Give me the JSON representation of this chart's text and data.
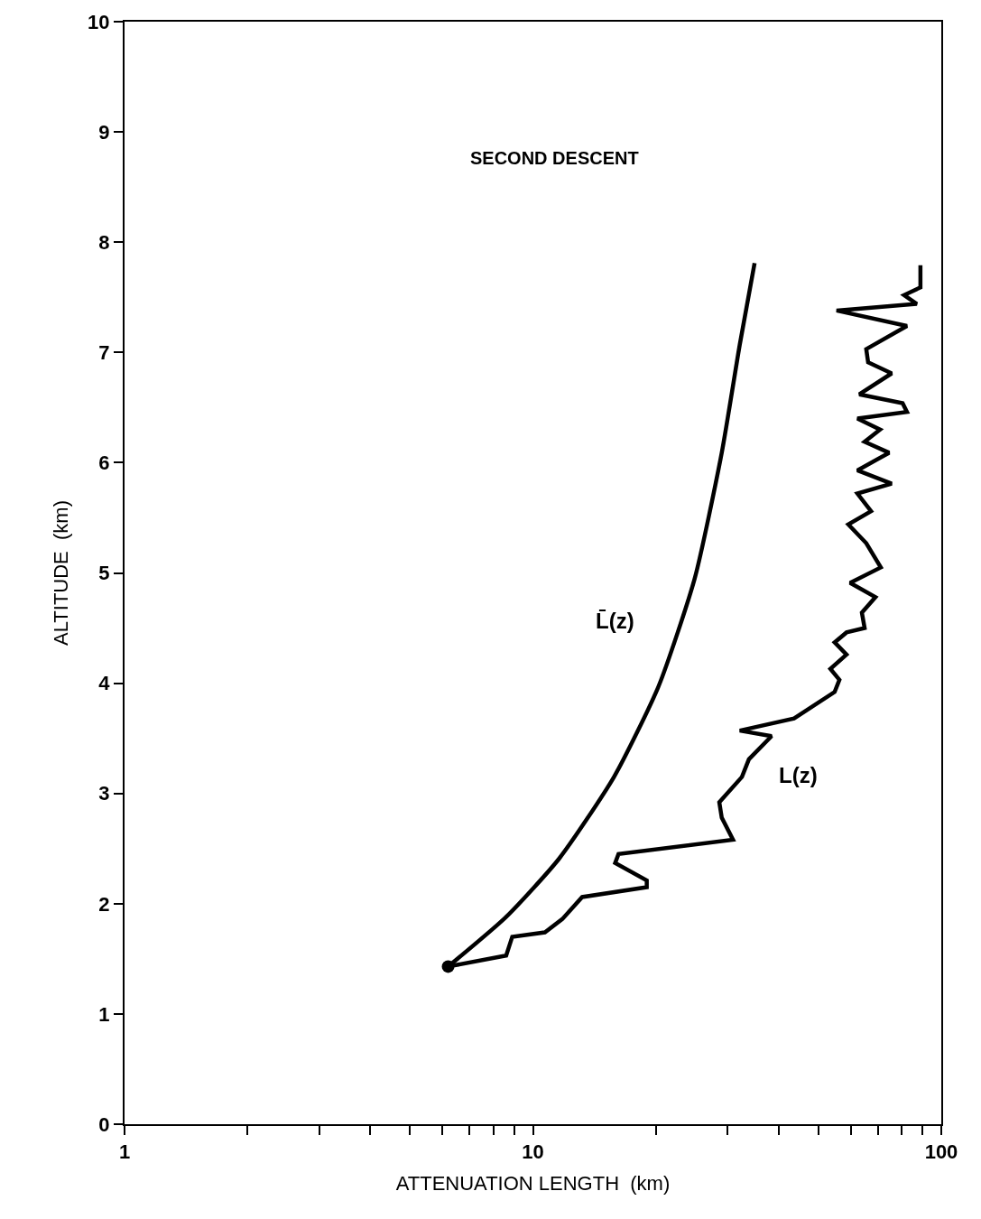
{
  "chart_data": {
    "type": "line",
    "xlabel": "ATTENUATION LENGTH  (km)",
    "ylabel": "ALTITUDE  (km)",
    "log": "x",
    "line_style": "solid",
    "marker": "none",
    "xlim": [
      1,
      100
    ],
    "ylim": [
      0,
      10
    ],
    "xticks": [
      1,
      {
        "value": 2,
        "label": null
      },
      {
        "value": 3,
        "label": null
      },
      {
        "value": 4,
        "label": null
      },
      {
        "value": 5,
        "label": null
      },
      {
        "value": 6,
        "label": null
      },
      {
        "value": 7,
        "label": null
      },
      {
        "value": 8,
        "label": null
      },
      {
        "value": 9,
        "label": null
      },
      10,
      {
        "value": 20,
        "label": null
      },
      {
        "value": 30,
        "label": null
      },
      {
        "value": 40,
        "label": null
      },
      {
        "value": 50,
        "label": null
      },
      {
        "value": 60,
        "label": null
      },
      {
        "value": 70,
        "label": null
      },
      {
        "value": 80,
        "label": null
      },
      {
        "value": 90,
        "label": null
      },
      100
    ],
    "yticks": [
      0,
      1,
      2,
      3,
      4,
      5,
      6,
      7,
      8,
      9,
      10
    ],
    "series": [
      {
        "color": "#000000",
        "x": [
          6.2,
          8.6,
          11.6,
          15.8,
          20.3,
          24.9,
          29.0,
          32.1,
          34.9
        ],
        "values": [
          1.43,
          1.88,
          2.41,
          3.15,
          3.97,
          4.95,
          6.09,
          7.07,
          7.81
        ]
      },
      {
        "color": "#000000",
        "x": [
          6.2,
          8.6,
          8.9,
          10.7,
          11.8,
          13.2,
          19.0,
          19.0,
          15.9,
          16.2,
          30.9,
          29.0,
          28.6,
          32.5,
          33.8,
          38.4,
          32.1,
          43.6,
          54.8,
          56.3,
          53.5,
          58.6,
          54.8,
          58.6,
          64.9,
          63.9,
          69.0,
          59.8,
          71.1,
          65.5,
          59.2,
          67.3,
          62.3,
          75.6,
          62.3,
          74.5,
          64.9,
          70.8,
          62.3,
          82.4,
          80.4,
          63.0,
          75.6,
          66.2,
          65.5,
          82.4,
          55.4,
          87.1,
          81.1,
          88.9,
          88.9
        ],
        "values": [
          1.43,
          1.53,
          1.7,
          1.74,
          1.86,
          2.06,
          2.15,
          2.21,
          2.37,
          2.45,
          2.58,
          2.78,
          2.92,
          3.15,
          3.31,
          3.52,
          3.57,
          3.68,
          3.92,
          4.03,
          4.13,
          4.26,
          4.37,
          4.46,
          4.5,
          4.64,
          4.78,
          4.91,
          5.05,
          5.27,
          5.44,
          5.56,
          5.72,
          5.81,
          5.93,
          6.09,
          6.19,
          6.3,
          6.4,
          6.46,
          6.54,
          6.62,
          6.81,
          6.91,
          7.03,
          7.24,
          7.38,
          7.44,
          7.52,
          7.59,
          7.79
        ]
      },
      {
        "type": "scatter",
        "marker": "circle",
        "color": "#000000",
        "x": [
          6.2
        ],
        "values": [
          1.43
        ]
      }
    ],
    "annotations": [
      "SECOND DESCENT",
      "L̄(z)",
      "L(z)"
    ]
  }
}
